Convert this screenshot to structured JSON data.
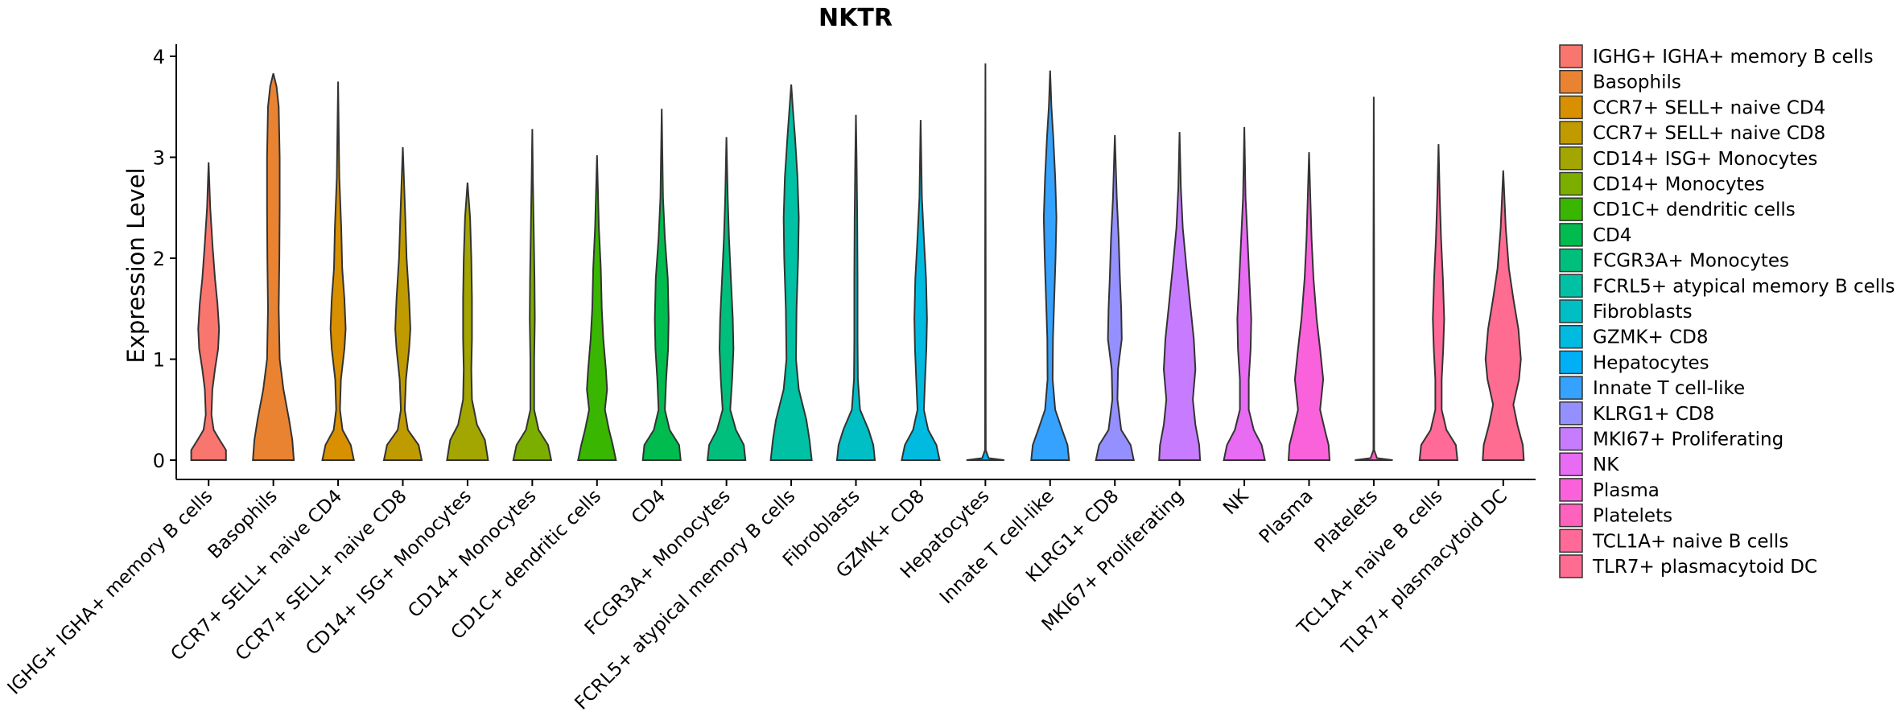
{
  "chart_data": {
    "type": "violin",
    "title": "NKTR",
    "xlabel": "",
    "ylabel": "Expression Level",
    "ylim": [
      -0.2,
      4.1
    ],
    "yticks": [
      0,
      1,
      2,
      3,
      4
    ],
    "legend_position": "right",
    "categories": [
      " IGHG+ IGHA+ memory B cells",
      "Basophils",
      "CCR7+ SELL+ naive CD4",
      "CCR7+ SELL+ naive CD8",
      "CD14+ ISG+ Monocytes",
      "CD14+ Monocytes",
      "CD1C+ dendritic cells",
      "CD4",
      "FCGR3A+ Monocytes",
      "FCRL5+ atypical memory B cells",
      "Fibroblasts",
      "GZMK+ CD8",
      "Hepatocytes",
      "Innate T cell-like",
      "KLRG1+ CD8",
      "MKI67+ Proliferating",
      "NK",
      "Plasma",
      "Platelets",
      "TCL1A+ naive B cells",
      "TLR7+ plasmacytoid DC"
    ],
    "colors": [
      "#F8766D",
      "#EA8331",
      "#D89000",
      "#C09B00",
      "#A3A500",
      "#7CAE00",
      "#39B600",
      "#00BB4E",
      "#00BF7D",
      "#00C1A3",
      "#00BFC4",
      "#00BAE0",
      "#00B0F6",
      "#35A2FF",
      "#9590FF",
      "#C77CFF",
      "#E76BF3",
      "#FA62DB",
      "#FF62BC",
      "#FF6A98",
      "#FF6C91"
    ],
    "max_values": [
      2.95,
      3.83,
      3.75,
      3.1,
      2.75,
      3.28,
      3.02,
      3.48,
      3.2,
      3.72,
      3.42,
      3.37,
      3.93,
      3.86,
      3.22,
      3.25,
      3.3,
      3.05,
      3.6,
      3.13,
      2.87
    ],
    "density_profiles": [
      [
        [
          0,
          0.55
        ],
        [
          0.1,
          0.55
        ],
        [
          0.2,
          0.35
        ],
        [
          0.3,
          0.16
        ],
        [
          0.45,
          0.09
        ],
        [
          0.7,
          0.12
        ],
        [
          0.9,
          0.2
        ],
        [
          1.1,
          0.3
        ],
        [
          1.3,
          0.33
        ],
        [
          1.55,
          0.28
        ],
        [
          1.8,
          0.2
        ],
        [
          2.1,
          0.13
        ],
        [
          2.5,
          0.05
        ],
        [
          2.95,
          0
        ]
      ],
      [
        [
          0,
          0.65
        ],
        [
          0.2,
          0.6
        ],
        [
          0.4,
          0.5
        ],
        [
          0.7,
          0.32
        ],
        [
          1.0,
          0.2
        ],
        [
          1.5,
          0.17
        ],
        [
          2.0,
          0.19
        ],
        [
          2.5,
          0.2
        ],
        [
          3.0,
          0.2
        ],
        [
          3.5,
          0.17
        ],
        [
          3.7,
          0.1
        ],
        [
          3.83,
          0
        ]
      ],
      [
        [
          0,
          0.5
        ],
        [
          0.15,
          0.4
        ],
        [
          0.3,
          0.14
        ],
        [
          0.5,
          0.06
        ],
        [
          0.8,
          0.09
        ],
        [
          1.1,
          0.2
        ],
        [
          1.3,
          0.24
        ],
        [
          1.6,
          0.2
        ],
        [
          1.9,
          0.13
        ],
        [
          2.3,
          0.1
        ],
        [
          2.8,
          0.04
        ],
        [
          3.75,
          0
        ]
      ],
      [
        [
          0,
          0.6
        ],
        [
          0.15,
          0.5
        ],
        [
          0.3,
          0.16
        ],
        [
          0.5,
          0.06
        ],
        [
          0.8,
          0.1
        ],
        [
          1.1,
          0.2
        ],
        [
          1.3,
          0.24
        ],
        [
          1.6,
          0.2
        ],
        [
          2.0,
          0.12
        ],
        [
          2.4,
          0.08
        ],
        [
          3.1,
          0
        ]
      ],
      [
        [
          0,
          0.65
        ],
        [
          0.2,
          0.55
        ],
        [
          0.35,
          0.3
        ],
        [
          0.6,
          0.14
        ],
        [
          0.9,
          0.12
        ],
        [
          1.2,
          0.14
        ],
        [
          1.6,
          0.14
        ],
        [
          2.0,
          0.12
        ],
        [
          2.4,
          0.08
        ],
        [
          2.75,
          0
        ]
      ],
      [
        [
          0,
          0.6
        ],
        [
          0.15,
          0.5
        ],
        [
          0.3,
          0.2
        ],
        [
          0.5,
          0.06
        ],
        [
          1.0,
          0.06
        ],
        [
          1.4,
          0.08
        ],
        [
          1.8,
          0.07
        ],
        [
          2.2,
          0.05
        ],
        [
          2.8,
          0.02
        ],
        [
          3.28,
          0
        ]
      ],
      [
        [
          0,
          0.6
        ],
        [
          0.15,
          0.5
        ],
        [
          0.3,
          0.38
        ],
        [
          0.5,
          0.25
        ],
        [
          0.7,
          0.32
        ],
        [
          0.9,
          0.28
        ],
        [
          1.2,
          0.2
        ],
        [
          1.5,
          0.15
        ],
        [
          1.9,
          0.12
        ],
        [
          2.3,
          0.06
        ],
        [
          3.02,
          0
        ]
      ],
      [
        [
          0,
          0.6
        ],
        [
          0.15,
          0.55
        ],
        [
          0.3,
          0.25
        ],
        [
          0.5,
          0.1
        ],
        [
          0.8,
          0.14
        ],
        [
          1.1,
          0.2
        ],
        [
          1.4,
          0.22
        ],
        [
          1.8,
          0.19
        ],
        [
          2.2,
          0.1
        ],
        [
          2.6,
          0.04
        ],
        [
          3.48,
          0
        ]
      ],
      [
        [
          0,
          0.6
        ],
        [
          0.15,
          0.55
        ],
        [
          0.3,
          0.3
        ],
        [
          0.5,
          0.12
        ],
        [
          0.8,
          0.18
        ],
        [
          1.1,
          0.22
        ],
        [
          1.4,
          0.2
        ],
        [
          1.8,
          0.14
        ],
        [
          2.2,
          0.08
        ],
        [
          2.6,
          0.04
        ],
        [
          3.2,
          0
        ]
      ],
      [
        [
          0,
          0.65
        ],
        [
          0.2,
          0.58
        ],
        [
          0.4,
          0.48
        ],
        [
          0.7,
          0.24
        ],
        [
          1.0,
          0.15
        ],
        [
          1.5,
          0.17
        ],
        [
          2.0,
          0.22
        ],
        [
          2.4,
          0.24
        ],
        [
          2.8,
          0.2
        ],
        [
          3.2,
          0.12
        ],
        [
          3.5,
          0.05
        ],
        [
          3.72,
          0
        ]
      ],
      [
        [
          0,
          0.6
        ],
        [
          0.15,
          0.55
        ],
        [
          0.3,
          0.4
        ],
        [
          0.5,
          0.13
        ],
        [
          0.8,
          0.06
        ],
        [
          1.2,
          0.05
        ],
        [
          1.8,
          0.05
        ],
        [
          2.4,
          0.04
        ],
        [
          3.0,
          0.02
        ],
        [
          3.42,
          0
        ]
      ],
      [
        [
          0,
          0.6
        ],
        [
          0.15,
          0.5
        ],
        [
          0.3,
          0.24
        ],
        [
          0.5,
          0.1
        ],
        [
          0.8,
          0.14
        ],
        [
          1.1,
          0.18
        ],
        [
          1.4,
          0.2
        ],
        [
          1.8,
          0.17
        ],
        [
          2.2,
          0.1
        ],
        [
          2.6,
          0.04
        ],
        [
          3.37,
          0
        ]
      ],
      [
        [
          0,
          0.6
        ],
        [
          0.02,
          0.1
        ],
        [
          0.1,
          0.012
        ],
        [
          2.0,
          0.01
        ],
        [
          3.93,
          0
        ]
      ],
      [
        [
          0,
          0.6
        ],
        [
          0.15,
          0.55
        ],
        [
          0.3,
          0.38
        ],
        [
          0.5,
          0.16
        ],
        [
          0.8,
          0.08
        ],
        [
          1.2,
          0.09
        ],
        [
          1.6,
          0.13
        ],
        [
          2.0,
          0.17
        ],
        [
          2.4,
          0.2
        ],
        [
          2.8,
          0.16
        ],
        [
          3.2,
          0.1
        ],
        [
          3.5,
          0.04
        ],
        [
          3.86,
          0
        ]
      ],
      [
        [
          0,
          0.6
        ],
        [
          0.15,
          0.5
        ],
        [
          0.3,
          0.2
        ],
        [
          0.6,
          0.08
        ],
        [
          0.9,
          0.1
        ],
        [
          1.2,
          0.22
        ],
        [
          1.5,
          0.2
        ],
        [
          1.8,
          0.16
        ],
        [
          2.2,
          0.12
        ],
        [
          2.6,
          0.06
        ],
        [
          3.22,
          0
        ]
      ],
      [
        [
          0,
          0.65
        ],
        [
          0.15,
          0.62
        ],
        [
          0.35,
          0.5
        ],
        [
          0.6,
          0.42
        ],
        [
          0.9,
          0.5
        ],
        [
          1.2,
          0.45
        ],
        [
          1.5,
          0.35
        ],
        [
          1.9,
          0.22
        ],
        [
          2.3,
          0.1
        ],
        [
          2.7,
          0.04
        ],
        [
          3.25,
          0
        ]
      ],
      [
        [
          0,
          0.65
        ],
        [
          0.15,
          0.55
        ],
        [
          0.3,
          0.3
        ],
        [
          0.5,
          0.14
        ],
        [
          0.8,
          0.14
        ],
        [
          1.1,
          0.2
        ],
        [
          1.4,
          0.22
        ],
        [
          1.8,
          0.16
        ],
        [
          2.2,
          0.1
        ],
        [
          2.6,
          0.04
        ],
        [
          3.3,
          0
        ]
      ],
      [
        [
          0,
          0.65
        ],
        [
          0.15,
          0.62
        ],
        [
          0.3,
          0.5
        ],
        [
          0.5,
          0.35
        ],
        [
          0.8,
          0.45
        ],
        [
          1.1,
          0.35
        ],
        [
          1.4,
          0.24
        ],
        [
          1.8,
          0.14
        ],
        [
          2.2,
          0.08
        ],
        [
          2.6,
          0.04
        ],
        [
          3.05,
          0
        ]
      ],
      [
        [
          0,
          0.6
        ],
        [
          0.02,
          0.1
        ],
        [
          0.1,
          0.012
        ],
        [
          2.0,
          0.01
        ],
        [
          3.6,
          0
        ]
      ],
      [
        [
          0,
          0.6
        ],
        [
          0.15,
          0.55
        ],
        [
          0.3,
          0.25
        ],
        [
          0.5,
          0.1
        ],
        [
          0.8,
          0.1
        ],
        [
          1.1,
          0.15
        ],
        [
          1.4,
          0.18
        ],
        [
          1.8,
          0.14
        ],
        [
          2.2,
          0.08
        ],
        [
          2.6,
          0.04
        ],
        [
          3.13,
          0
        ]
      ],
      [
        [
          0,
          0.65
        ],
        [
          0.15,
          0.62
        ],
        [
          0.35,
          0.45
        ],
        [
          0.55,
          0.32
        ],
        [
          0.8,
          0.5
        ],
        [
          1.0,
          0.56
        ],
        [
          1.3,
          0.48
        ],
        [
          1.6,
          0.32
        ],
        [
          1.9,
          0.18
        ],
        [
          2.3,
          0.08
        ],
        [
          2.87,
          0
        ]
      ]
    ]
  }
}
